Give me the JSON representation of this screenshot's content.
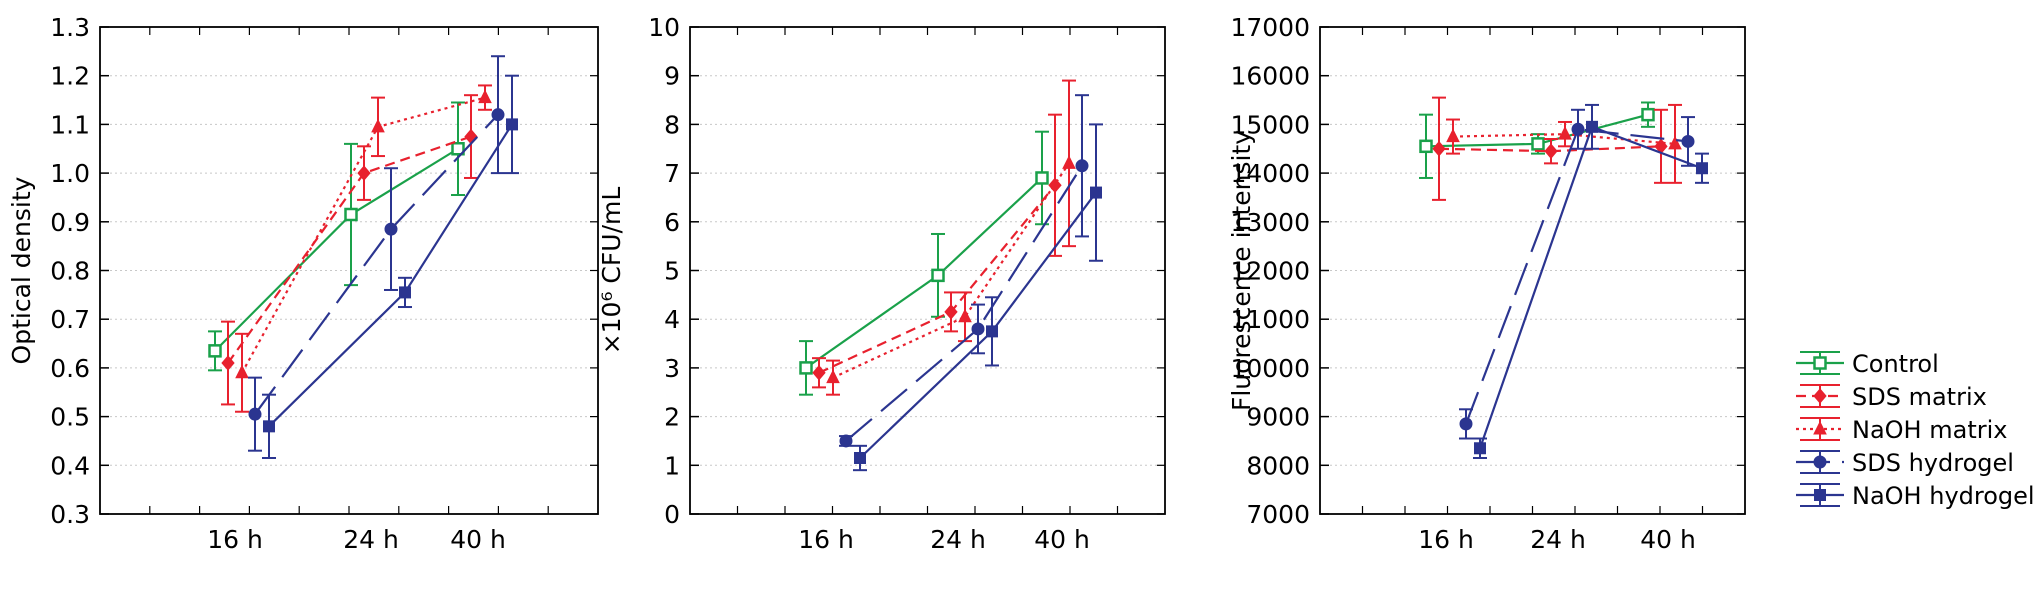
{
  "chart_data": [
    {
      "type": "line",
      "ylabel": "Optical density",
      "ylim": [
        0.3,
        1.3
      ],
      "yticks": [
        "0.3",
        "0.4",
        "0.5",
        "0.6",
        "0.7",
        "0.8",
        "0.9",
        "1.0",
        "1.1",
        "1.2",
        "1.3"
      ],
      "categories": [
        "16 h",
        "24 h",
        "40 h"
      ],
      "grid": "horizontal",
      "series": [
        {
          "name": "Control",
          "values": [
            0.635,
            0.915,
            1.05
          ],
          "err": [
            0.04,
            0.145,
            0.095
          ]
        },
        {
          "name": "SDS matrix",
          "values": [
            0.61,
            1.0,
            1.075
          ],
          "err": [
            0.085,
            0.055,
            0.085
          ]
        },
        {
          "name": "NaOH matrix",
          "values": [
            0.59,
            1.095,
            1.155
          ],
          "err": [
            0.08,
            0.06,
            0.025
          ]
        },
        {
          "name": "SDS hydrogel",
          "values": [
            0.505,
            0.885,
            1.12
          ],
          "err": [
            0.075,
            0.125,
            0.12
          ]
        },
        {
          "name": "NaOH hydrogel",
          "values": [
            0.48,
            0.755,
            1.1
          ],
          "err": [
            0.065,
            0.03,
            0.1
          ]
        }
      ]
    },
    {
      "type": "line",
      "ylabel": "×10⁶ CFU/mL",
      "ylim": [
        0,
        10
      ],
      "yticks": [
        "0",
        "1",
        "2",
        "3",
        "4",
        "5",
        "6",
        "7",
        "8",
        "9",
        "10"
      ],
      "categories": [
        "16 h",
        "24 h",
        "40 h"
      ],
      "grid": "horizontal",
      "series": [
        {
          "name": "Control",
          "values": [
            3.0,
            4.9,
            6.9
          ],
          "err": [
            0.55,
            0.85,
            0.95
          ]
        },
        {
          "name": "SDS matrix",
          "values": [
            2.9,
            4.15,
            6.75
          ],
          "err": [
            0.3,
            0.4,
            1.45
          ]
        },
        {
          "name": "NaOH matrix",
          "values": [
            2.8,
            4.05,
            7.2
          ],
          "err": [
            0.35,
            0.5,
            1.7
          ]
        },
        {
          "name": "SDS hydrogel",
          "values": [
            1.5,
            3.8,
            7.15
          ],
          "err": [
            0.1,
            0.5,
            1.45
          ]
        },
        {
          "name": "NaOH hydrogel",
          "values": [
            1.15,
            3.75,
            6.6
          ],
          "err": [
            0.25,
            0.7,
            1.4
          ]
        }
      ]
    },
    {
      "type": "line",
      "ylabel": "Fluorescence intensity",
      "ylim": [
        7000,
        17000
      ],
      "yticks": [
        "7000",
        "8000",
        "9000",
        "10000",
        "11000",
        "12000",
        "13000",
        "14000",
        "15000",
        "16000",
        "17000"
      ],
      "categories": [
        "16 h",
        "24 h",
        "40 h"
      ],
      "grid": "horizontal",
      "series": [
        {
          "name": "Control",
          "values": [
            14550,
            14600,
            15200
          ],
          "err": [
            650,
            200,
            250
          ]
        },
        {
          "name": "SDS matrix",
          "values": [
            14500,
            14450,
            14550
          ],
          "err": [
            1050,
            250,
            750
          ]
        },
        {
          "name": "NaOH matrix",
          "values": [
            14750,
            14800,
            14600
          ],
          "err": [
            350,
            250,
            800
          ]
        },
        {
          "name": "SDS hydrogel",
          "values": [
            8850,
            14900,
            14650
          ],
          "err": [
            300,
            400,
            500
          ]
        },
        {
          "name": "NaOH hydrogel",
          "values": [
            8350,
            14950,
            14100
          ],
          "err": [
            200,
            450,
            300
          ]
        }
      ]
    }
  ],
  "legend": {
    "position": "right",
    "items": [
      {
        "label": "Control",
        "color": "#1aa14a",
        "dash": "solid",
        "marker": "open-square"
      },
      {
        "label": "SDS matrix",
        "color": "#e8212e",
        "dash": "dashed",
        "marker": "diamond"
      },
      {
        "label": "NaOH matrix",
        "color": "#e8212e",
        "dash": "dotted",
        "marker": "triangle"
      },
      {
        "label": "SDS hydrogel",
        "color": "#2b3590",
        "dash": "longdash",
        "marker": "circle"
      },
      {
        "label": "NaOH hydrogel",
        "color": "#2b3590",
        "dash": "solid",
        "marker": "square"
      }
    ]
  }
}
